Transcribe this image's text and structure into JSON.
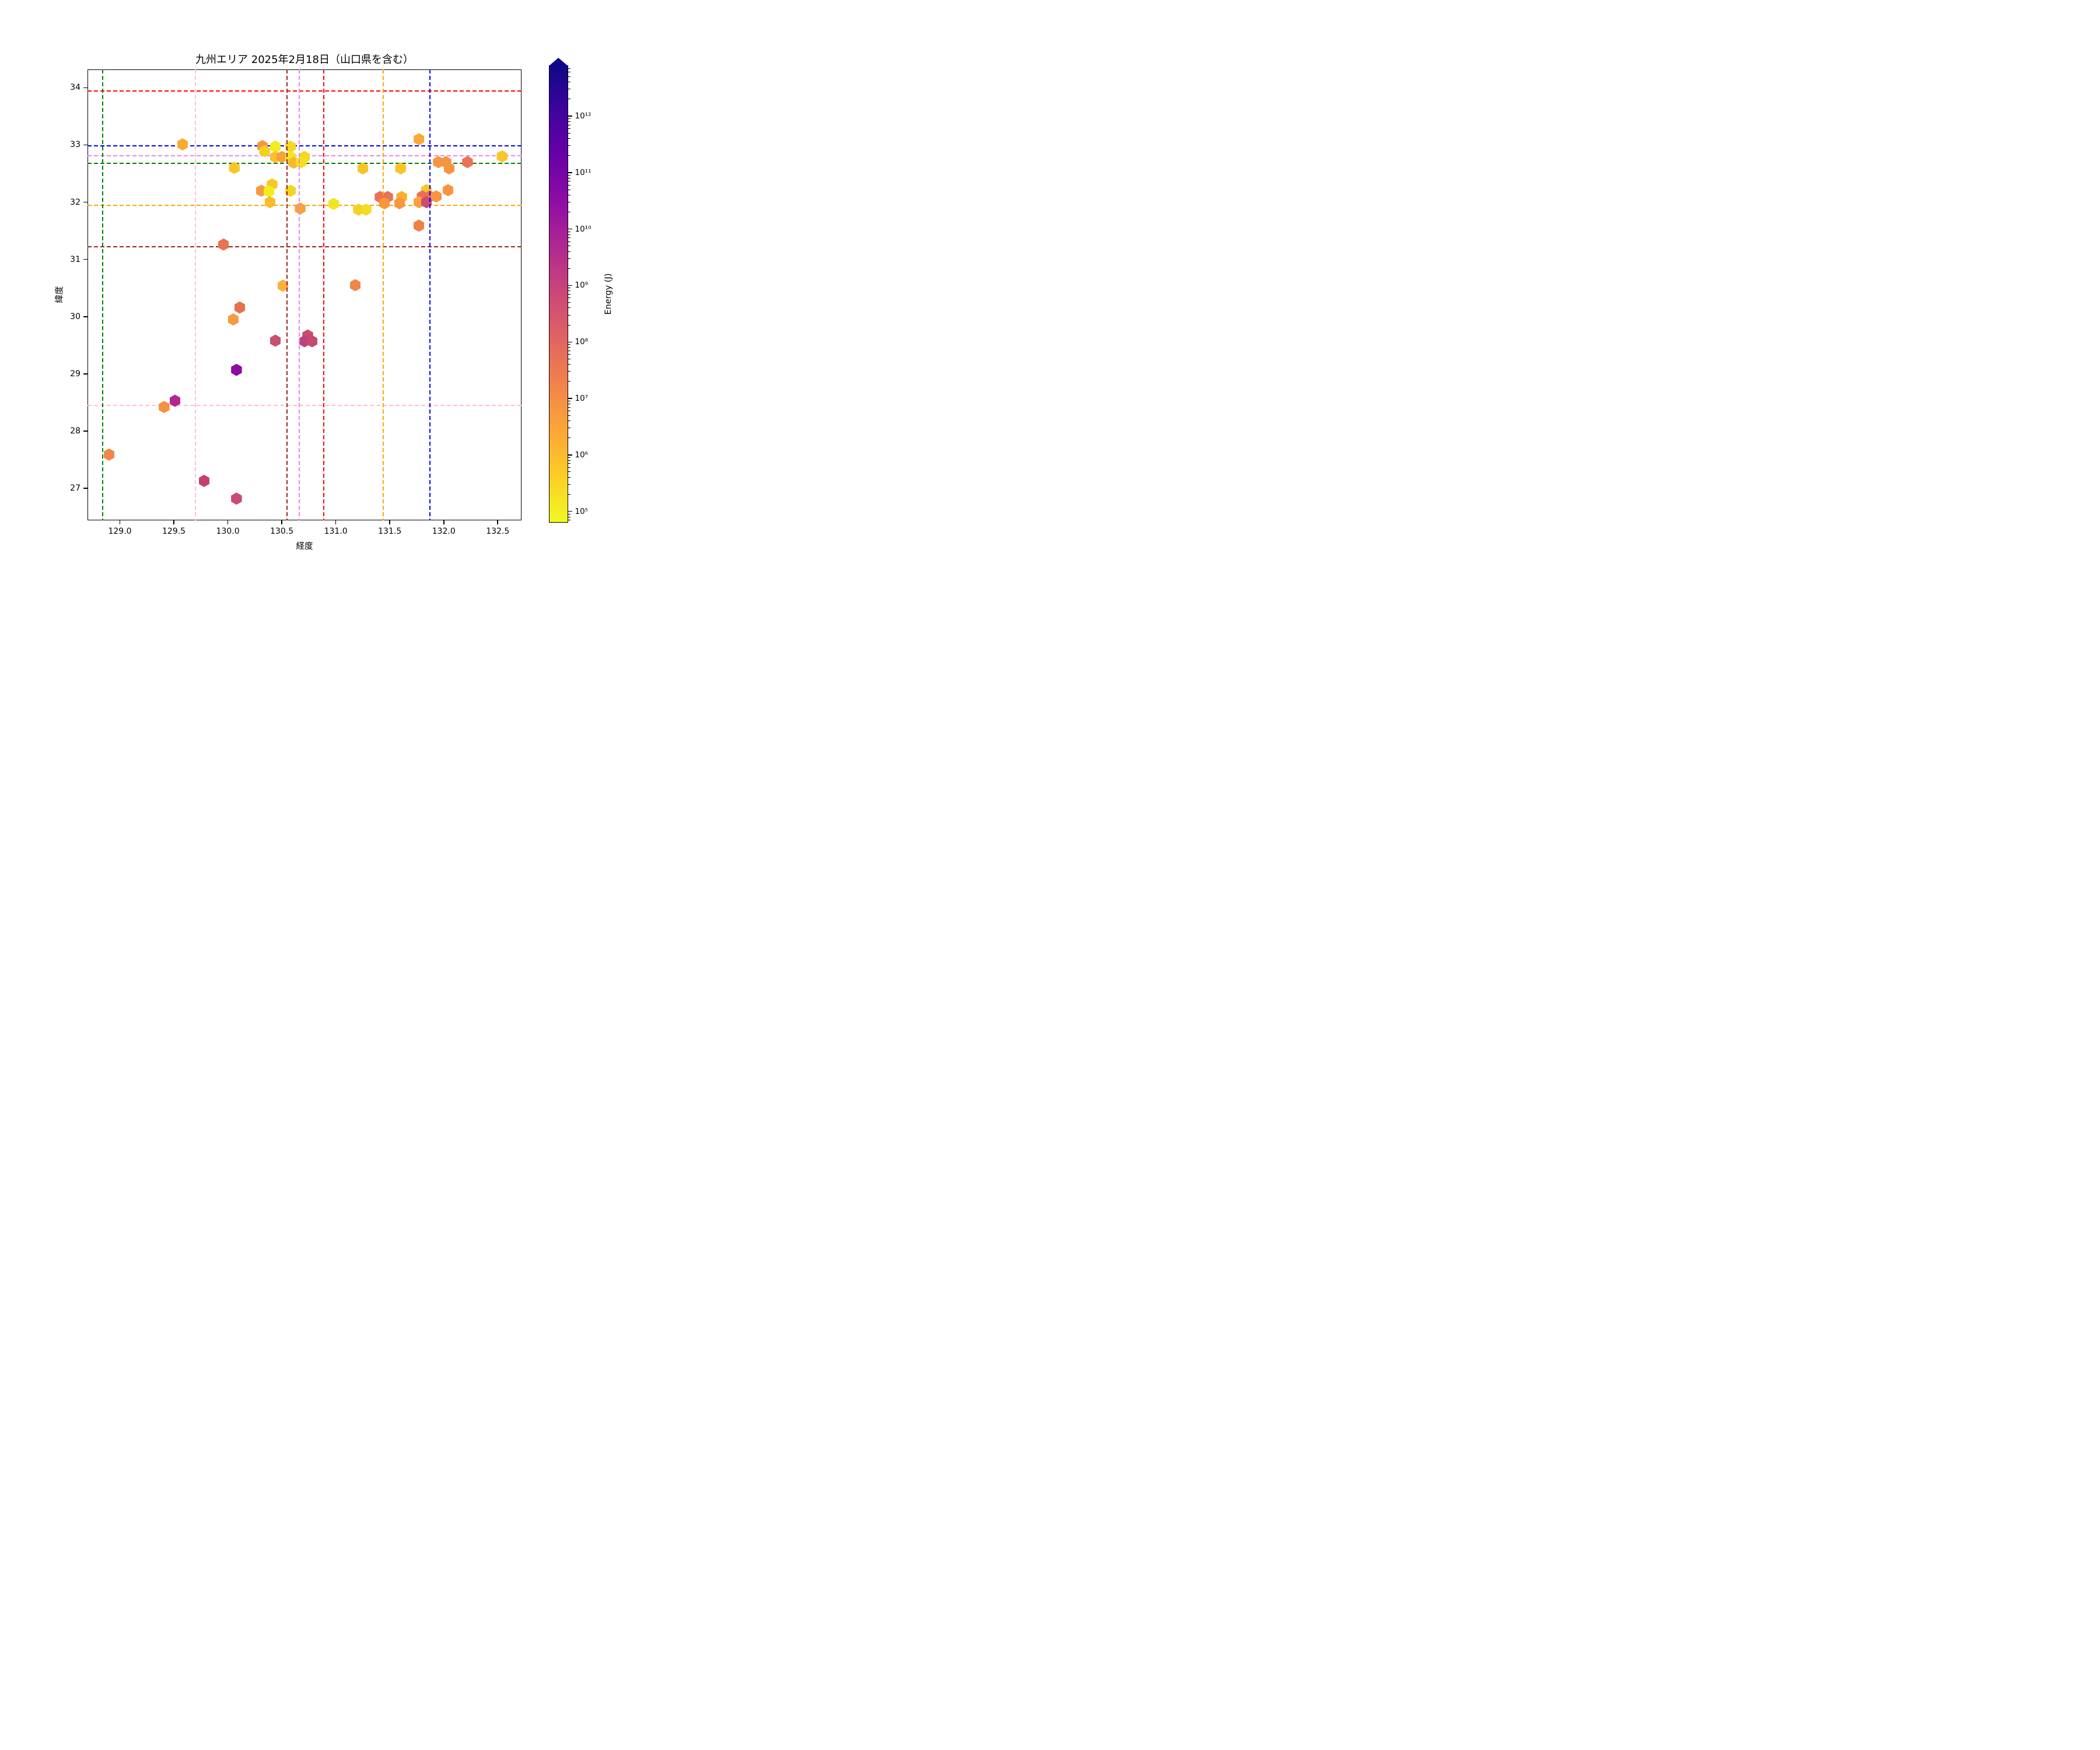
{
  "title": "九州エリア 2025年2月18日（山口県を含む）",
  "chart_data": {
    "type": "scatter",
    "marker": "hexagon",
    "title": "九州エリア 2025年2月18日（山口県を含む）",
    "xlabel": "経度",
    "ylabel": "緯度",
    "xlim": [
      128.7,
      132.72
    ],
    "ylim": [
      26.44,
      34.32
    ],
    "xticks": [
      "129.0",
      "129.5",
      "130.0",
      "130.5",
      "131.0",
      "131.5",
      "132.0",
      "132.5"
    ],
    "yticks": [
      "27",
      "28",
      "29",
      "30",
      "31",
      "32",
      "33",
      "34"
    ],
    "grid": false,
    "legend": "none",
    "hlines": [
      {
        "lat": 33.94,
        "color": "#ff0000",
        "name": "red"
      },
      {
        "lat": 32.98,
        "color": "#0000ff",
        "name": "blue"
      },
      {
        "lat": 32.81,
        "color": "#ee82ee",
        "name": "violet"
      },
      {
        "lat": 32.68,
        "color": "#008000",
        "name": "green"
      },
      {
        "lat": 31.94,
        "color": "#ffa500",
        "name": "orange"
      },
      {
        "lat": 31.22,
        "color": "#962720",
        "name": "darkred"
      },
      {
        "lat": 28.45,
        "color": "#ffc0cb",
        "name": "pink"
      }
    ],
    "vlines": [
      {
        "lon": 128.84,
        "color": "#008000",
        "name": "green"
      },
      {
        "lon": 129.7,
        "color": "#ffc0cb",
        "name": "pink"
      },
      {
        "lon": 130.55,
        "color": "#962720",
        "name": "darkred"
      },
      {
        "lon": 130.66,
        "color": "#ee82ee",
        "name": "violet"
      },
      {
        "lon": 130.89,
        "color": "#ff0000",
        "name": "red"
      },
      {
        "lon": 131.44,
        "color": "#ffa500",
        "name": "orange"
      },
      {
        "lon": 131.87,
        "color": "#0000ff",
        "name": "blue"
      }
    ],
    "points": [
      [
        129.58,
        33.01,
        "#f9ab31"
      ],
      [
        130.32,
        32.98,
        "#f9963f"
      ],
      [
        130.44,
        32.97,
        "#f3ec1e"
      ],
      [
        130.58,
        32.97,
        "#f5d722"
      ],
      [
        130.34,
        32.89,
        "#f4d221"
      ],
      [
        131.77,
        33.1,
        "#fbab33"
      ],
      [
        130.44,
        32.79,
        "#f7c12b"
      ],
      [
        130.5,
        32.79,
        "#f9a03a"
      ],
      [
        130.58,
        32.79,
        "#f2e521"
      ],
      [
        130.71,
        32.79,
        "#f5d720"
      ],
      [
        130.61,
        32.69,
        "#f8b82e"
      ],
      [
        130.68,
        32.7,
        "#f0e11d"
      ],
      [
        130.06,
        32.6,
        "#f8c62a"
      ],
      [
        131.25,
        32.59,
        "#f6c52a"
      ],
      [
        131.6,
        32.59,
        "#f6c52a"
      ],
      [
        131.95,
        32.7,
        "#f89540"
      ],
      [
        132.02,
        32.7,
        "#f89540"
      ],
      [
        132.22,
        32.7,
        "#e97455"
      ],
      [
        132.05,
        32.59,
        "#f89540"
      ],
      [
        132.54,
        32.8,
        "#f6c827"
      ],
      [
        130.41,
        32.31,
        "#f7c728"
      ],
      [
        130.31,
        32.2,
        "#f9993e"
      ],
      [
        130.38,
        32.19,
        "#f1ed1b"
      ],
      [
        130.58,
        32.2,
        "#f3d422"
      ],
      [
        130.39,
        32.0,
        "#f8bc2c"
      ],
      [
        130.67,
        31.89,
        "#f9a13c"
      ],
      [
        131.41,
        32.09,
        "#e97257"
      ],
      [
        131.48,
        32.09,
        "#e97257"
      ],
      [
        131.45,
        31.98,
        "#f89540"
      ],
      [
        131.61,
        32.09,
        "#fdae31"
      ],
      [
        131.59,
        31.98,
        "#f89540"
      ],
      [
        131.84,
        32.21,
        "#f8c62a"
      ],
      [
        132.04,
        32.21,
        "#f89540"
      ],
      [
        131.8,
        32.1,
        "#e86e56"
      ],
      [
        131.87,
        32.1,
        "#e86e56"
      ],
      [
        131.93,
        32.1,
        "#f89540"
      ],
      [
        131.77,
        32.0,
        "#fba23c"
      ],
      [
        131.84,
        32.0,
        "#cd4a70"
      ],
      [
        130.98,
        31.97,
        "#f0e525"
      ],
      [
        131.21,
        31.87,
        "#f5d026"
      ],
      [
        131.28,
        31.87,
        "#f3dc24"
      ],
      [
        131.77,
        31.59,
        "#ef8147"
      ],
      [
        129.96,
        31.26,
        "#ea7350"
      ],
      [
        130.51,
        30.54,
        "#fbb040"
      ],
      [
        131.18,
        30.55,
        "#f0854a"
      ],
      [
        130.11,
        30.16,
        "#e4714f"
      ],
      [
        130.05,
        29.95,
        "#f79b40"
      ],
      [
        130.74,
        29.67,
        "#cb4b6f"
      ],
      [
        130.71,
        29.57,
        "#bb4280"
      ],
      [
        130.78,
        29.57,
        "#c54a6e"
      ],
      [
        130.44,
        29.58,
        "#c8506f"
      ],
      [
        130.08,
        29.07,
        "#8d0ba3"
      ],
      [
        129.51,
        28.53,
        "#b02791"
      ],
      [
        129.41,
        28.42,
        "#f59140"
      ],
      [
        128.9,
        27.59,
        "#f1854c"
      ],
      [
        129.78,
        27.13,
        "#c4406f"
      ],
      [
        130.08,
        26.82,
        "#ca4a71"
      ]
    ],
    "colorbar": {
      "label": "Energy (J)",
      "scale": "log",
      "extend": "max",
      "cmap": "plasma_r",
      "exp_min": 4.8,
      "exp_max": 12.9,
      "tick_exponents": [
        5,
        6,
        7,
        8,
        9,
        10,
        11,
        12
      ],
      "tick_labels": [
        "10⁵",
        "10⁶",
        "10⁷",
        "10⁸",
        "10⁹",
        "10¹⁰",
        "10¹¹",
        "10¹²"
      ],
      "gradient_bottom_to_top": [
        "#f0f921",
        "#fcce25",
        "#fca636",
        "#f2844b",
        "#e16462",
        "#cc4778",
        "#b12a90",
        "#8f0da4",
        "#6a00a8",
        "#41049d",
        "#0d0887"
      ]
    }
  }
}
